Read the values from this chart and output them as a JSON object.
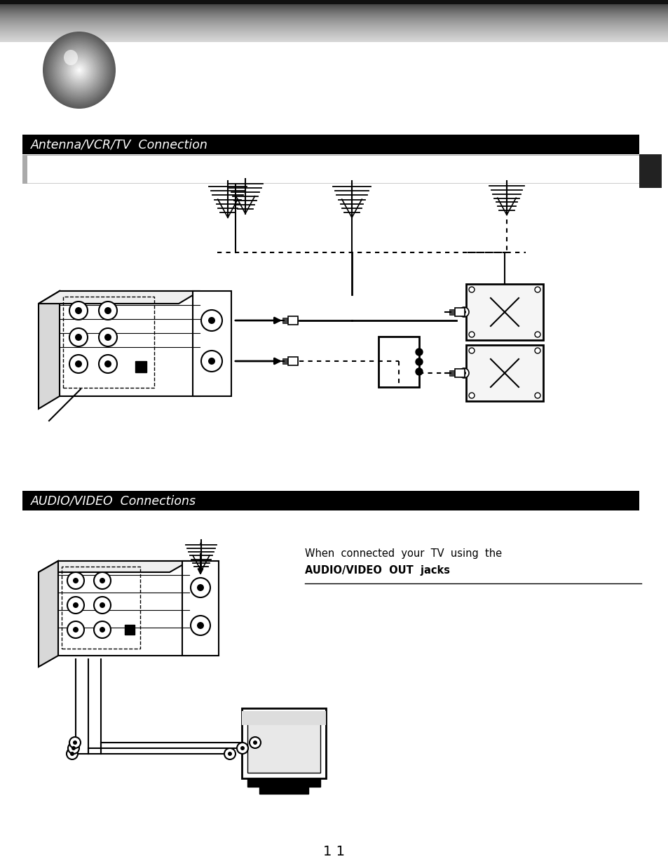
{
  "title1": "Antenna/VCR/TV  Connection",
  "title2": "AUDIO/VIDEO  Connections",
  "page_number": "1 1",
  "text_line1": "When  connected  your  TV  using  the",
  "text_line2": "AUDIO/VIDEO  OUT  jacks",
  "bg_color": "#ffffff",
  "section_bar_color": "#000000",
  "title_text_color": "#ffffff",
  "body_text_color": "#000000"
}
